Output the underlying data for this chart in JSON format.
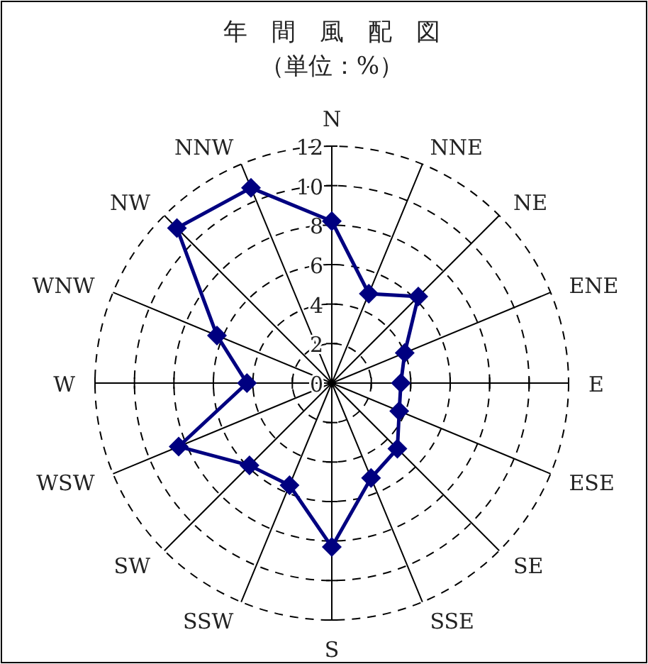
{
  "chart_data": {
    "type": "radar",
    "title": "年　間　風　配　図",
    "subtitle": "（単位：%）",
    "categories": [
      "N",
      "NNE",
      "NE",
      "ENE",
      "E",
      "ESE",
      "SE",
      "SSE",
      "S",
      "SSW",
      "SW",
      "WSW",
      "W",
      "WNW",
      "NW",
      "NNW"
    ],
    "series": [
      {
        "color": "#000080",
        "values": [
          8.2,
          4.9,
          6.2,
          4.0,
          3.5,
          3.7,
          4.7,
          5.2,
          8.3,
          5.6,
          5.9,
          8.4,
          4.3,
          6.3,
          11.1,
          10.7
        ]
      }
    ],
    "ylim": [
      0,
      12
    ],
    "yticks": [
      0,
      2,
      4,
      6,
      8,
      10,
      12
    ],
    "grid": true,
    "marker": "diamond",
    "line_style": "solid"
  }
}
